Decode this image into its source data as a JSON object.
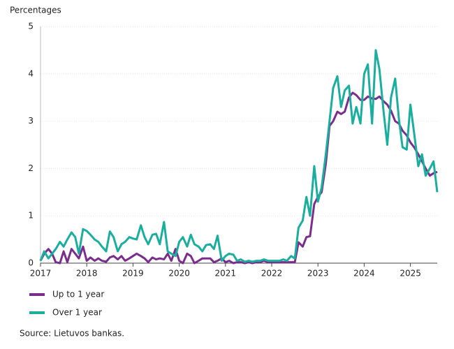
{
  "chart_data": {
    "type": "line",
    "y_label": "Percentages",
    "source": "Source: Lietuvos bankas.",
    "x": [
      2017.0,
      2017.08,
      2017.17,
      2017.25,
      2017.33,
      2017.42,
      2017.5,
      2017.58,
      2017.67,
      2017.75,
      2017.83,
      2017.92,
      2018.0,
      2018.08,
      2018.17,
      2018.25,
      2018.33,
      2018.42,
      2018.5,
      2018.58,
      2018.67,
      2018.75,
      2018.83,
      2018.92,
      2019.0,
      2019.08,
      2019.17,
      2019.25,
      2019.33,
      2019.42,
      2019.5,
      2019.58,
      2019.67,
      2019.75,
      2019.83,
      2019.92,
      2020.0,
      2020.08,
      2020.17,
      2020.25,
      2020.33,
      2020.42,
      2020.5,
      2020.58,
      2020.67,
      2020.75,
      2020.83,
      2020.92,
      2021.0,
      2021.08,
      2021.17,
      2021.25,
      2021.33,
      2021.42,
      2021.5,
      2021.58,
      2021.67,
      2021.75,
      2021.83,
      2021.92,
      2022.0,
      2022.08,
      2022.17,
      2022.25,
      2022.33,
      2022.42,
      2022.5,
      2022.58,
      2022.67,
      2022.75,
      2022.83,
      2022.92,
      2023.0,
      2023.08,
      2023.17,
      2023.25,
      2023.33,
      2023.42,
      2023.5,
      2023.58,
      2023.67,
      2023.75,
      2023.83,
      2023.92,
      2024.0,
      2024.08,
      2024.17,
      2024.25,
      2024.33,
      2024.42,
      2024.5,
      2024.58,
      2024.67,
      2024.75,
      2024.83,
      2024.92,
      2025.0,
      2025.08,
      2025.17,
      2025.25,
      2025.33,
      2025.42,
      2025.5,
      2025.58
    ],
    "series": [
      {
        "name": "Up to 1 year",
        "color": "#7b2d8e",
        "values": [
          0.05,
          0.2,
          0.3,
          0.2,
          0.02,
          0.0,
          0.25,
          0.02,
          0.3,
          0.2,
          0.1,
          0.35,
          0.05,
          0.12,
          0.05,
          0.1,
          0.05,
          0.03,
          0.12,
          0.15,
          0.08,
          0.15,
          0.05,
          0.1,
          0.15,
          0.2,
          0.15,
          0.1,
          0.02,
          0.12,
          0.08,
          0.1,
          0.08,
          0.2,
          0.05,
          0.3,
          0.05,
          0.0,
          0.2,
          0.15,
          0.0,
          0.05,
          0.1,
          0.1,
          0.1,
          0.02,
          0.05,
          0.1,
          0.02,
          0.05,
          0.0,
          0.02,
          0.02,
          0.0,
          0.02,
          0.0,
          0.02,
          0.02,
          0.05,
          0.02,
          0.02,
          0.02,
          0.02,
          0.02,
          0.02,
          0.02,
          0.02,
          0.44,
          0.35,
          0.55,
          0.57,
          1.25,
          1.4,
          1.5,
          2.1,
          2.9,
          3.0,
          3.2,
          3.15,
          3.2,
          3.5,
          3.6,
          3.55,
          3.45,
          3.45,
          3.52,
          3.48,
          3.47,
          3.52,
          3.42,
          3.35,
          3.22,
          3.0,
          2.95,
          2.8,
          2.7,
          2.55,
          2.45,
          2.3,
          2.15,
          2.0,
          1.85,
          1.9,
          1.93
        ]
      },
      {
        "name": "Over 1 year",
        "color": "#1aae9f",
        "values": [
          0.05,
          0.25,
          0.1,
          0.2,
          0.3,
          0.45,
          0.35,
          0.5,
          0.65,
          0.55,
          0.2,
          0.72,
          0.68,
          0.6,
          0.5,
          0.45,
          0.35,
          0.25,
          0.67,
          0.55,
          0.25,
          0.4,
          0.45,
          0.55,
          0.52,
          0.5,
          0.8,
          0.55,
          0.4,
          0.6,
          0.62,
          0.4,
          0.87,
          0.25,
          0.2,
          0.15,
          0.45,
          0.55,
          0.35,
          0.6,
          0.4,
          0.35,
          0.25,
          0.38,
          0.4,
          0.3,
          0.58,
          0.05,
          0.15,
          0.2,
          0.18,
          0.05,
          0.08,
          0.03,
          0.05,
          0.03,
          0.05,
          0.05,
          0.08,
          0.05,
          0.05,
          0.05,
          0.05,
          0.08,
          0.05,
          0.15,
          0.1,
          0.75,
          0.9,
          1.4,
          1.0,
          2.05,
          1.3,
          1.6,
          2.3,
          3.0,
          3.7,
          3.95,
          3.3,
          3.65,
          3.75,
          2.95,
          3.3,
          2.95,
          4.0,
          4.2,
          2.95,
          4.5,
          4.1,
          3.2,
          2.5,
          3.5,
          3.9,
          3.05,
          2.45,
          2.4,
          3.35,
          2.75,
          2.05,
          2.3,
          1.85,
          2.0,
          2.15,
          1.5
        ]
      }
    ],
    "xlim": [
      2017,
      2025.58
    ],
    "xticks": [
      2017,
      2018,
      2019,
      2020,
      2021,
      2022,
      2023,
      2024,
      2025
    ],
    "ylim": [
      0,
      5
    ],
    "yticks": [
      0,
      1,
      2,
      3,
      4,
      5
    ],
    "grid": true
  }
}
